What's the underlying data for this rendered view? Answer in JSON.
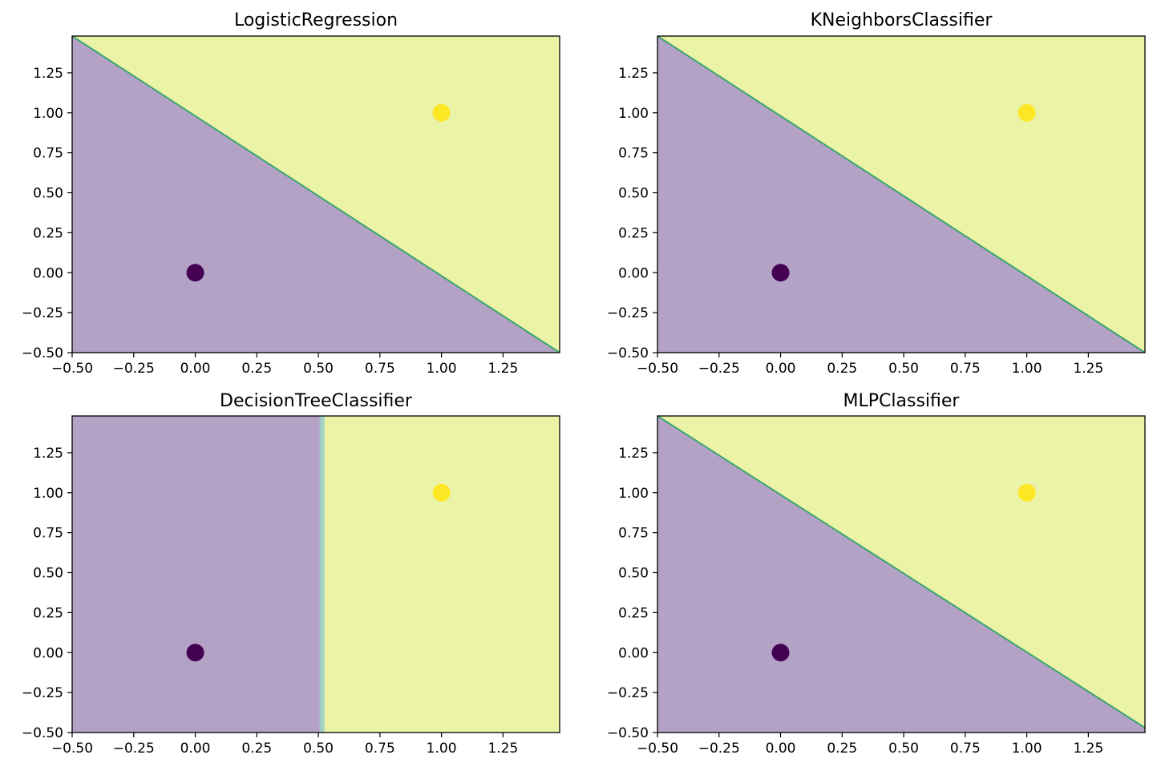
{
  "chart_data": [
    {
      "type": "contour",
      "title": "LogisticRegression",
      "xlabel": "",
      "ylabel": "",
      "xlim": [
        -0.5,
        1.48
      ],
      "ylim": [
        -0.5,
        1.48
      ],
      "xticks": [
        -0.5,
        -0.25,
        0.0,
        0.25,
        0.5,
        0.75,
        1.0,
        1.25
      ],
      "yticks": [
        -0.5,
        -0.25,
        0.0,
        0.25,
        0.5,
        0.75,
        1.0,
        1.25
      ],
      "xtick_labels": [
        "−0.50",
        "−0.25",
        "0.00",
        "0.25",
        "0.50",
        "0.75",
        "1.00",
        "1.25"
      ],
      "ytick_labels": [
        "−0.50",
        "−0.25",
        "0.00",
        "0.25",
        "0.50",
        "0.75",
        "1.00",
        "1.25"
      ],
      "boundary": {
        "kind": "line",
        "x0": -0.5,
        "y0": 1.48,
        "x1": 1.48,
        "y1": -0.5
      },
      "regions": {
        "low": "#b3a2c6",
        "high": "#ebf3a6"
      },
      "boundary_color": "#3aa56f",
      "points": [
        {
          "x": 0,
          "y": 0,
          "class": 0,
          "color": "#440154"
        },
        {
          "x": 1,
          "y": 1,
          "class": 1,
          "color": "#fde725"
        }
      ],
      "grid": false
    },
    {
      "type": "contour",
      "title": "KNeighborsClassifier",
      "xlabel": "",
      "ylabel": "",
      "xlim": [
        -0.5,
        1.48
      ],
      "ylim": [
        -0.5,
        1.48
      ],
      "xticks": [
        -0.5,
        -0.25,
        0.0,
        0.25,
        0.5,
        0.75,
        1.0,
        1.25
      ],
      "yticks": [
        -0.5,
        -0.25,
        0.0,
        0.25,
        0.5,
        0.75,
        1.0,
        1.25
      ],
      "xtick_labels": [
        "−0.50",
        "−0.25",
        "0.00",
        "0.25",
        "0.50",
        "0.75",
        "1.00",
        "1.25"
      ],
      "ytick_labels": [
        "−0.50",
        "−0.25",
        "0.00",
        "0.25",
        "0.50",
        "0.75",
        "1.00",
        "1.25"
      ],
      "boundary": {
        "kind": "line",
        "x0": -0.5,
        "y0": 1.48,
        "x1": 1.48,
        "y1": -0.5
      },
      "regions": {
        "low": "#b3a2c6",
        "high": "#ebf3a6"
      },
      "boundary_color": "#3aa56f",
      "points": [
        {
          "x": 0,
          "y": 0,
          "class": 0,
          "color": "#440154"
        },
        {
          "x": 1,
          "y": 1,
          "class": 1,
          "color": "#fde725"
        }
      ],
      "grid": false
    },
    {
      "type": "contour",
      "title": "DecisionTreeClassifier",
      "xlabel": "",
      "ylabel": "",
      "xlim": [
        -0.5,
        1.48
      ],
      "ylim": [
        -0.5,
        1.48
      ],
      "xticks": [
        -0.5,
        -0.25,
        0.0,
        0.25,
        0.5,
        0.75,
        1.0,
        1.25
      ],
      "yticks": [
        -0.5,
        -0.25,
        0.0,
        0.25,
        0.5,
        0.75,
        1.0,
        1.25
      ],
      "xtick_labels": [
        "−0.50",
        "−0.25",
        "0.00",
        "0.25",
        "0.50",
        "0.75",
        "1.00",
        "1.25"
      ],
      "ytick_labels": [
        "−0.50",
        "−0.25",
        "0.00",
        "0.25",
        "0.50",
        "0.75",
        "1.00",
        "1.25"
      ],
      "boundary": {
        "kind": "vertical",
        "x": 0.515
      },
      "regions": {
        "low": "#b3a2c6",
        "high": "#ebf3a6"
      },
      "boundary_color": "#9fd0c6",
      "points": [
        {
          "x": 0,
          "y": 0,
          "class": 0,
          "color": "#440154"
        },
        {
          "x": 1,
          "y": 1,
          "class": 1,
          "color": "#fde725"
        }
      ],
      "grid": false
    },
    {
      "type": "contour",
      "title": "MLPClassifier",
      "xlabel": "",
      "ylabel": "",
      "xlim": [
        -0.5,
        1.48
      ],
      "ylim": [
        -0.5,
        1.48
      ],
      "xticks": [
        -0.5,
        -0.25,
        0.0,
        0.25,
        0.5,
        0.75,
        1.0,
        1.25
      ],
      "yticks": [
        -0.5,
        -0.25,
        0.0,
        0.25,
        0.5,
        0.75,
        1.0,
        1.25
      ],
      "xtick_labels": [
        "−0.50",
        "−0.25",
        "0.00",
        "0.25",
        "0.50",
        "0.75",
        "1.00",
        "1.25"
      ],
      "ytick_labels": [
        "−0.50",
        "−0.25",
        "0.00",
        "0.25",
        "0.50",
        "0.75",
        "1.00",
        "1.25"
      ],
      "boundary": {
        "kind": "line",
        "x0": -0.5,
        "y0": 1.48,
        "x1": 1.48,
        "y1": -0.47
      },
      "regions": {
        "low": "#b3a2c6",
        "high": "#ebf3a6"
      },
      "boundary_color": "#3aa56f",
      "points": [
        {
          "x": 0,
          "y": 0,
          "class": 0,
          "color": "#440154"
        },
        {
          "x": 1,
          "y": 1,
          "class": 1,
          "color": "#fde725"
        }
      ],
      "grid": false
    }
  ]
}
